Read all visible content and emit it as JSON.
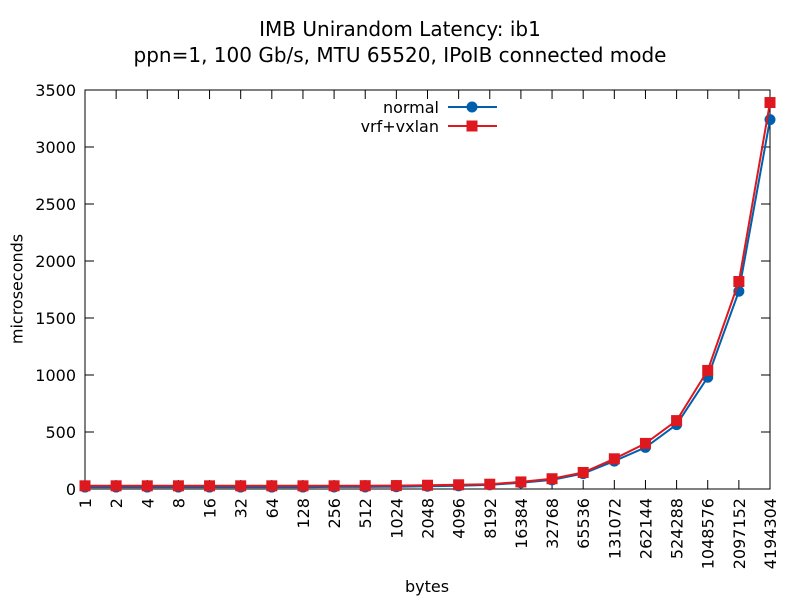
{
  "chart_data": {
    "type": "line",
    "title": "IMB Unirandom Latency: ib1",
    "subtitle": "ppn=1, 100 Gb/s, MTU 65520, IPoIB connected mode",
    "xlabel": "bytes",
    "ylabel": "microseconds",
    "ylim": [
      0,
      3500
    ],
    "yticks": [
      0,
      500,
      1000,
      1500,
      2000,
      2500,
      3000,
      3500
    ],
    "categories": [
      "1",
      "2",
      "4",
      "8",
      "16",
      "32",
      "64",
      "128",
      "256",
      "512",
      "1024",
      "2048",
      "4096",
      "8192",
      "16384",
      "32768",
      "65536",
      "131072",
      "262144",
      "524288",
      "1048576",
      "2097152",
      "4194304"
    ],
    "legend_position": "top-center",
    "grid": false,
    "series": [
      {
        "name": "normal",
        "color": "#0060ad",
        "marker": "circle",
        "values": [
          17,
          17,
          17,
          17,
          17,
          17,
          17,
          17,
          18,
          18,
          20,
          24,
          28,
          36,
          55,
          80,
          135,
          245,
          365,
          565,
          980,
          1735,
          3240
        ]
      },
      {
        "name": "vrf+vxlan",
        "color": "#dd181f",
        "marker": "square",
        "values": [
          28,
          28,
          28,
          28,
          28,
          28,
          28,
          28,
          28,
          29,
          30,
          33,
          37,
          42,
          62,
          90,
          145,
          265,
          400,
          600,
          1040,
          1820,
          3390
        ]
      }
    ]
  }
}
